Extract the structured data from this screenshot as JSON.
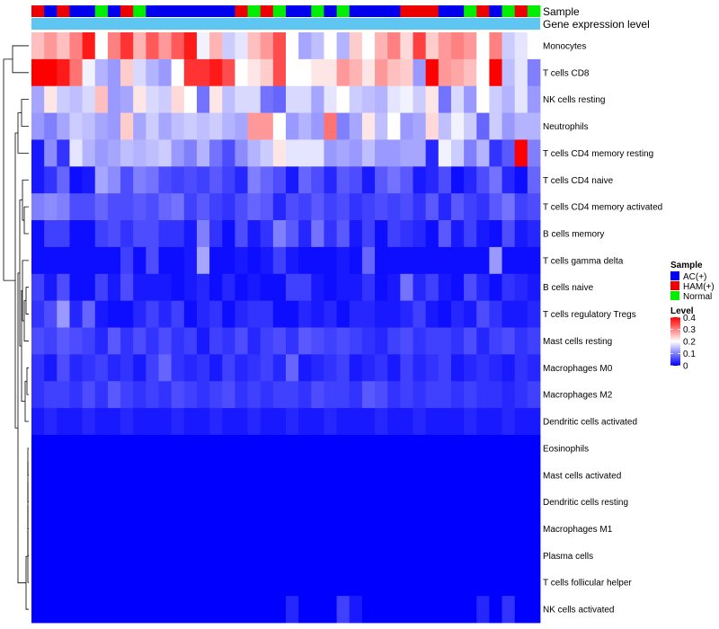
{
  "chart_data": {
    "type": "heatmap",
    "title": "",
    "annotation_tracks": [
      {
        "label": "Sample",
        "type": "categorical"
      },
      {
        "label": "Gene expression level",
        "type": "continuous"
      }
    ],
    "sample_groups": [
      "HAM(+)",
      "AC(+)",
      "HAM(+)",
      "AC(+)",
      "AC(+)",
      "Normal",
      "AC(+)",
      "HAM(+)",
      "Normal",
      "AC(+)",
      "AC(+)",
      "AC(+)",
      "AC(+)",
      "AC(+)",
      "AC(+)",
      "AC(+)",
      "HAM(+)",
      "Normal",
      "HAM(+)",
      "Normal",
      "AC(+)",
      "AC(+)",
      "Normal",
      "AC(+)",
      "Normal",
      "AC(+)",
      "AC(+)",
      "AC(+)",
      "AC(+)",
      "HAM(+)",
      "HAM(+)",
      "HAM(+)",
      "AC(+)",
      "AC(+)",
      "Normal",
      "HAM(+)",
      "AC(+)",
      "Normal",
      "HAM(+)",
      "Normal"
    ],
    "rows": [
      "Monocytes",
      "T cells CD8",
      "NK cells resting",
      "Neutrophils",
      "T cells CD4 memory resting",
      "T cells CD4 naive",
      "T cells CD4 memory activated",
      "B cells memory",
      "T cells gamma delta",
      "B cells naive",
      "T cells regulatory  Tregs",
      "Mast cells resting",
      "Macrophages M0",
      "Macrophages M2",
      "Dendritic cells activated",
      "Eosinophils",
      "Mast cells activated",
      "Dendritic cells resting",
      "Macrophages M1",
      "Plasma cells",
      "T cells follicular helper",
      "NK cells activated"
    ],
    "values": [
      [
        0.25,
        0.28,
        0.25,
        0.3,
        0.38,
        0.2,
        0.3,
        0.36,
        0.26,
        0.33,
        0.28,
        0.33,
        0.38,
        0.19,
        0.26,
        0.16,
        0.18,
        0.25,
        0.28,
        0.34,
        0.2,
        0.13,
        0.15,
        0.2,
        0.14,
        0.24,
        0.2,
        0.26,
        0.3,
        0.23,
        0.35,
        0.24,
        0.28,
        0.3,
        0.28,
        0.2,
        0.3,
        0.16,
        0.18,
        0.2
      ],
      [
        0.4,
        0.4,
        0.38,
        0.31,
        0.19,
        0.14,
        0.12,
        0.24,
        0.17,
        0.14,
        0.12,
        0.2,
        0.36,
        0.36,
        0.38,
        0.34,
        0.2,
        0.22,
        0.24,
        0.34,
        0.2,
        0.2,
        0.22,
        0.22,
        0.28,
        0.26,
        0.22,
        0.28,
        0.25,
        0.24,
        0.12,
        0.4,
        0.28,
        0.27,
        0.25,
        0.2,
        0.4,
        0.15,
        0.18,
        0.1
      ],
      [
        0.13,
        0.22,
        0.16,
        0.15,
        0.17,
        0.25,
        0.12,
        0.13,
        0.22,
        0.17,
        0.16,
        0.23,
        0.2,
        0.09,
        0.22,
        0.15,
        0.17,
        0.17,
        0.09,
        0.08,
        0.17,
        0.17,
        0.13,
        0.18,
        0.2,
        0.16,
        0.15,
        0.14,
        0.18,
        0.19,
        0.16,
        0.22,
        0.09,
        0.17,
        0.12,
        0.2,
        0.16,
        0.14,
        0.18,
        0.12
      ],
      [
        0.12,
        0.1,
        0.13,
        0.16,
        0.15,
        0.13,
        0.12,
        0.24,
        0.13,
        0.16,
        0.13,
        0.15,
        0.16,
        0.15,
        0.16,
        0.14,
        0.13,
        0.28,
        0.28,
        0.2,
        0.12,
        0.14,
        0.12,
        0.31,
        0.1,
        0.13,
        0.22,
        0.15,
        0.2,
        0.12,
        0.13,
        0.23,
        0.15,
        0.19,
        0.16,
        0.08,
        0.16,
        0.12,
        0.14,
        0.14
      ],
      [
        0.02,
        0.11,
        0.04,
        0.18,
        0.14,
        0.12,
        0.13,
        0.15,
        0.14,
        0.15,
        0.16,
        0.12,
        0.1,
        0.14,
        0.09,
        0.06,
        0.11,
        0.14,
        0.16,
        0.22,
        0.18,
        0.18,
        0.18,
        0.12,
        0.13,
        0.12,
        0.15,
        0.12,
        0.12,
        0.13,
        0.13,
        0.03,
        0.19,
        0.16,
        0.1,
        0.14,
        0.04,
        0.07,
        0.4,
        0.1
      ],
      [
        0.02,
        0.04,
        0.08,
        0.01,
        0.02,
        0.13,
        0.11,
        0.06,
        0.1,
        0.09,
        0.06,
        0.05,
        0.06,
        0.05,
        0.07,
        0.05,
        0.03,
        0.1,
        0.08,
        0.06,
        0.02,
        0.08,
        0.06,
        0.03,
        0.07,
        0.06,
        0.02,
        0.07,
        0.09,
        0.07,
        0.02,
        0.03,
        0.06,
        0.01,
        0.03,
        0.06,
        0.09,
        0.03,
        0.01,
        0.08
      ],
      [
        0.1,
        0.11,
        0.1,
        0.06,
        0.06,
        0.08,
        0.06,
        0.06,
        0.07,
        0.06,
        0.08,
        0.09,
        0.05,
        0.07,
        0.05,
        0.04,
        0.06,
        0.08,
        0.07,
        0.03,
        0.06,
        0.05,
        0.07,
        0.05,
        0.06,
        0.04,
        0.05,
        0.06,
        0.05,
        0.06,
        0.04,
        0.07,
        0.03,
        0.07,
        0.05,
        0.04,
        0.07,
        0.09,
        0.05,
        0.06
      ],
      [
        0.01,
        0.05,
        0.05,
        0.01,
        0.01,
        0.05,
        0.06,
        0.04,
        0.06,
        0.06,
        0.04,
        0.04,
        0.02,
        0.1,
        0.04,
        0.01,
        0.06,
        0.02,
        0.04,
        0.1,
        0.07,
        0.03,
        0.09,
        0.04,
        0.07,
        0.02,
        0.05,
        0.01,
        0.05,
        0.04,
        0.03,
        0.01,
        0.07,
        0.02,
        0.05,
        0.02,
        0.01,
        0.06,
        0.02,
        0.03
      ],
      [
        0.01,
        0.01,
        0.01,
        0.01,
        0.01,
        0.01,
        0.01,
        0.05,
        0.01,
        0.06,
        0.01,
        0.01,
        0.02,
        0.13,
        0.01,
        0.01,
        0.02,
        0.01,
        0.02,
        0.05,
        0.02,
        0.01,
        0.01,
        0.01,
        0.02,
        0.01,
        0.08,
        0.01,
        0.01,
        0.01,
        0.01,
        0.01,
        0.01,
        0.01,
        0.01,
        0.01,
        0.12,
        0.01,
        0.01,
        0.01
      ],
      [
        0.05,
        0.02,
        0.06,
        0.01,
        0.01,
        0.05,
        0.02,
        0.06,
        0.02,
        0.02,
        0.02,
        0.01,
        0.02,
        0.03,
        0.01,
        0.03,
        0.01,
        0.02,
        0.01,
        0.01,
        0.05,
        0.05,
        0.02,
        0.01,
        0.02,
        0.02,
        0.04,
        0.01,
        0.02,
        0.09,
        0.03,
        0.05,
        0.02,
        0.01,
        0.06,
        0.03,
        0.01,
        0.04,
        0.03,
        0.02
      ],
      [
        0.04,
        0.06,
        0.12,
        0.03,
        0.08,
        0.02,
        0.01,
        0.01,
        0.03,
        0.05,
        0.03,
        0.05,
        0.01,
        0.03,
        0.04,
        0.01,
        0.03,
        0.04,
        0.04,
        0.01,
        0.01,
        0.03,
        0.02,
        0.03,
        0.01,
        0.03,
        0.03,
        0.02,
        0.02,
        0.03,
        0.05,
        0.02,
        0.01,
        0.03,
        0.02,
        0.06,
        0.04,
        0.02,
        0.02,
        0.03
      ],
      [
        0.06,
        0.05,
        0.07,
        0.06,
        0.05,
        0.03,
        0.07,
        0.04,
        0.06,
        0.04,
        0.06,
        0.04,
        0.05,
        0.02,
        0.05,
        0.04,
        0.06,
        0.03,
        0.05,
        0.06,
        0.04,
        0.07,
        0.06,
        0.05,
        0.06,
        0.05,
        0.04,
        0.03,
        0.05,
        0.06,
        0.04,
        0.05,
        0.05,
        0.04,
        0.06,
        0.03,
        0.05,
        0.06,
        0.04,
        0.05
      ],
      [
        0.04,
        0.02,
        0.06,
        0.03,
        0.04,
        0.05,
        0.03,
        0.04,
        0.02,
        0.05,
        0.08,
        0.04,
        0.03,
        0.04,
        0.02,
        0.05,
        0.03,
        0.04,
        0.05,
        0.03,
        0.08,
        0.02,
        0.03,
        0.04,
        0.05,
        0.02,
        0.03,
        0.04,
        0.02,
        0.05,
        0.03,
        0.04,
        0.05,
        0.02,
        0.03,
        0.04,
        0.03,
        0.02,
        0.04,
        0.03
      ],
      [
        0.04,
        0.05,
        0.05,
        0.04,
        0.06,
        0.04,
        0.07,
        0.05,
        0.04,
        0.05,
        0.04,
        0.06,
        0.05,
        0.04,
        0.05,
        0.06,
        0.04,
        0.05,
        0.04,
        0.05,
        0.05,
        0.04,
        0.06,
        0.05,
        0.05,
        0.04,
        0.07,
        0.06,
        0.04,
        0.05,
        0.04,
        0.05,
        0.05,
        0.04,
        0.05,
        0.04,
        0.04,
        0.03,
        0.04,
        0.05
      ],
      [
        0.02,
        0.03,
        0.02,
        0.02,
        0.03,
        0.02,
        0.02,
        0.03,
        0.02,
        0.02,
        0.02,
        0.03,
        0.02,
        0.02,
        0.03,
        0.02,
        0.02,
        0.03,
        0.02,
        0.02,
        0.03,
        0.02,
        0.02,
        0.03,
        0.02,
        0.02,
        0.02,
        0.03,
        0.02,
        0.02,
        0.03,
        0.02,
        0.02,
        0.02,
        0.03,
        0.02,
        0.02,
        0.03,
        0.02,
        0.02
      ],
      [
        0,
        0,
        0,
        0,
        0,
        0,
        0,
        0,
        0,
        0,
        0,
        0,
        0,
        0,
        0,
        0,
        0,
        0,
        0,
        0,
        0,
        0,
        0,
        0,
        0,
        0,
        0,
        0,
        0,
        0,
        0,
        0,
        0,
        0,
        0,
        0,
        0,
        0,
        0,
        0
      ],
      [
        0,
        0,
        0,
        0,
        0,
        0,
        0,
        0,
        0,
        0,
        0,
        0,
        0,
        0,
        0,
        0,
        0,
        0,
        0,
        0,
        0,
        0,
        0,
        0,
        0,
        0,
        0,
        0,
        0,
        0,
        0,
        0,
        0,
        0,
        0,
        0,
        0,
        0,
        0,
        0
      ],
      [
        0,
        0,
        0,
        0,
        0,
        0,
        0,
        0,
        0,
        0,
        0,
        0,
        0,
        0,
        0,
        0,
        0,
        0,
        0,
        0,
        0,
        0,
        0,
        0,
        0,
        0,
        0,
        0,
        0,
        0,
        0,
        0,
        0,
        0,
        0,
        0,
        0,
        0,
        0,
        0
      ],
      [
        0,
        0,
        0,
        0,
        0,
        0,
        0,
        0,
        0,
        0,
        0,
        0,
        0,
        0,
        0,
        0,
        0,
        0,
        0,
        0,
        0,
        0,
        0,
        0,
        0,
        0,
        0,
        0,
        0,
        0,
        0,
        0,
        0,
        0,
        0,
        0,
        0,
        0,
        0,
        0
      ],
      [
        0,
        0,
        0,
        0,
        0,
        0,
        0,
        0,
        0,
        0,
        0,
        0,
        0,
        0,
        0,
        0,
        0,
        0,
        0,
        0,
        0,
        0,
        0,
        0,
        0,
        0,
        0,
        0,
        0,
        0,
        0,
        0,
        0,
        0,
        0,
        0,
        0,
        0,
        0,
        0
      ],
      [
        0,
        0,
        0,
        0,
        0,
        0,
        0,
        0,
        0,
        0,
        0,
        0,
        0,
        0,
        0,
        0,
        0,
        0,
        0,
        0,
        0,
        0,
        0,
        0,
        0,
        0,
        0,
        0,
        0,
        0,
        0,
        0,
        0,
        0,
        0,
        0,
        0,
        0,
        0,
        0
      ],
      [
        0,
        0,
        0,
        0,
        0,
        0,
        0,
        0,
        0,
        0,
        0,
        0,
        0,
        0,
        0,
        0,
        0,
        0,
        0,
        0,
        0.03,
        0,
        0,
        0,
        0.05,
        0.02,
        0,
        0,
        0,
        0,
        0,
        0,
        0,
        0,
        0,
        0.03,
        0,
        0.04,
        0,
        0
      ]
    ],
    "legend": {
      "sample": {
        "title": "Sample",
        "entries": [
          "AC(+)",
          "HAM(+)",
          "Normal"
        ],
        "colors": [
          "#0000ee",
          "#ee0000",
          "#00ee00"
        ]
      },
      "level": {
        "title": "Level",
        "ticks": [
          0.4,
          0.3,
          0.2,
          0.1,
          0
        ],
        "tick_labels": [
          "0.4",
          "0.3",
          "0.2",
          "0.1",
          "0"
        ],
        "range": [
          0,
          0.4
        ]
      }
    },
    "colors": {
      "low": "#0000ff",
      "mid": "#ffffff",
      "high": "#ff0000",
      "gene_expression_bar": "#5ec6f0"
    },
    "dendrogram": "rows"
  }
}
